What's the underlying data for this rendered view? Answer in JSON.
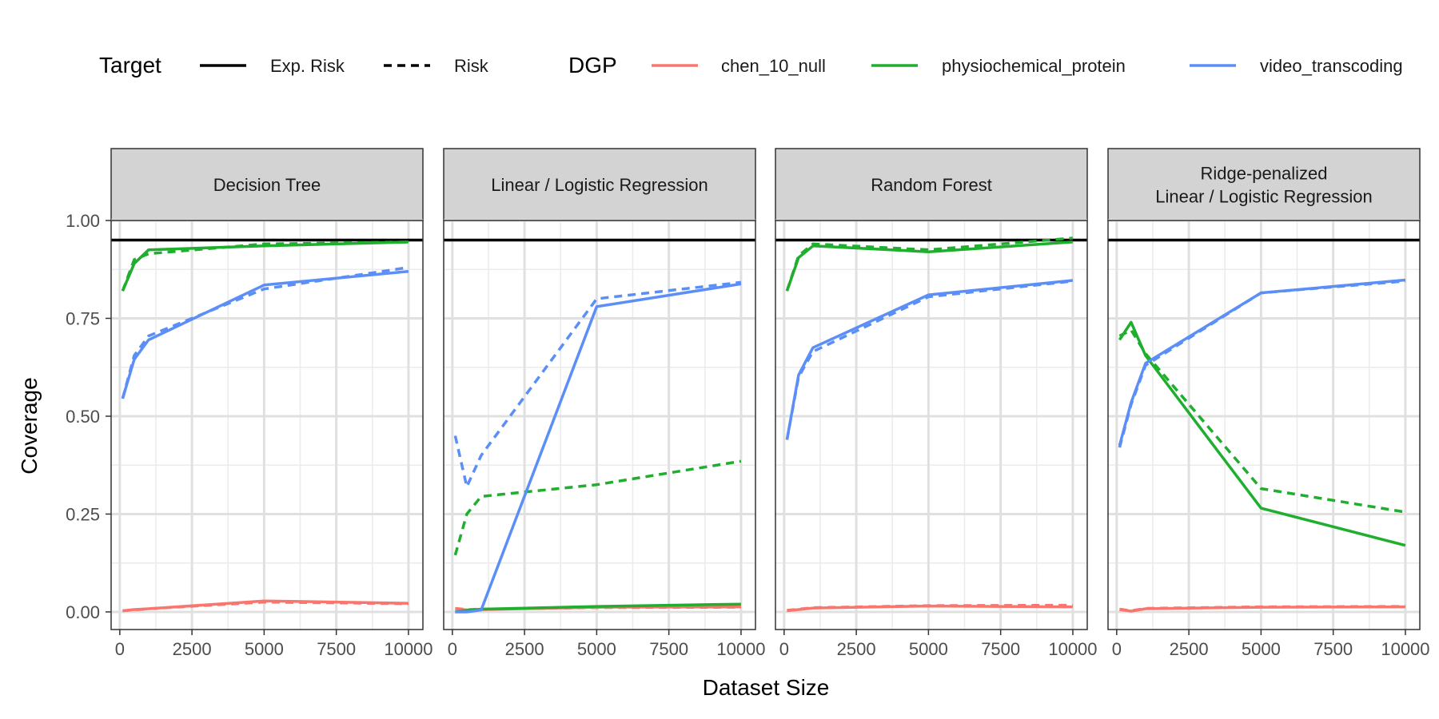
{
  "chart_data": {
    "type": "line",
    "xlabel": "Dataset Size",
    "ylabel": "Coverage",
    "xlim": [
      -300,
      10500
    ],
    "ylim": [
      -0.045,
      1.0
    ],
    "x_ticks": [
      0,
      2500,
      5000,
      7500,
      10000
    ],
    "y_ticks": [
      0.0,
      0.25,
      0.5,
      0.75,
      1.0
    ],
    "x_tick_labels": [
      "0",
      "2500",
      "5000",
      "7500",
      "10000"
    ],
    "y_tick_labels": [
      "0.00",
      "0.25",
      "0.50",
      "0.75",
      "1.00"
    ],
    "reference_line": 0.95,
    "grid": true,
    "legend": {
      "position": "top",
      "target_title": "Target",
      "targets": [
        {
          "label": "Exp. Risk",
          "dash": "solid"
        },
        {
          "label": "Risk",
          "dash": "dashed"
        }
      ],
      "dgp_title": "DGP",
      "dgps": [
        {
          "label": "chen_10_null",
          "color": "#F8766D"
        },
        {
          "label": "physiochemical_protein",
          "color": "#1FAE2E"
        },
        {
          "label": "video_transcoding",
          "color": "#5B8FF7"
        }
      ]
    },
    "colors": {
      "chen_10_null": "#F8766D",
      "physiochemical_protein": "#1FAE2E",
      "video_transcoding": "#5B8FF7"
    },
    "panels": [
      {
        "title": [
          "Decision Tree"
        ],
        "series": [
          {
            "dgp": "chen_10_null",
            "target": "Exp. Risk",
            "x": [
              100,
              500,
              1000,
              5000,
              10000
            ],
            "y": [
              0.003,
              0.006,
              0.008,
              0.028,
              0.022
            ]
          },
          {
            "dgp": "chen_10_null",
            "target": "Risk",
            "x": [
              100,
              500,
              1000,
              5000,
              10000
            ],
            "y": [
              0.003,
              0.005,
              0.008,
              0.025,
              0.021
            ]
          },
          {
            "dgp": "physiochemical_protein",
            "target": "Exp. Risk",
            "x": [
              100,
              500,
              1000,
              5000,
              10000
            ],
            "y": [
              0.82,
              0.89,
              0.925,
              0.935,
              0.945
            ]
          },
          {
            "dgp": "physiochemical_protein",
            "target": "Risk",
            "x": [
              100,
              500,
              1000,
              5000,
              10000
            ],
            "y": [
              0.82,
              0.9,
              0.915,
              0.94,
              0.945
            ]
          },
          {
            "dgp": "video_transcoding",
            "target": "Exp. Risk",
            "x": [
              100,
              500,
              1000,
              5000,
              10000
            ],
            "y": [
              0.545,
              0.645,
              0.695,
              0.835,
              0.87
            ]
          },
          {
            "dgp": "video_transcoding",
            "target": "Risk",
            "x": [
              100,
              500,
              1000,
              5000,
              10000
            ],
            "y": [
              0.545,
              0.655,
              0.705,
              0.825,
              0.88
            ]
          }
        ]
      },
      {
        "title": [
          "Linear / Logistic Regression"
        ],
        "series": [
          {
            "dgp": "chen_10_null",
            "target": "Exp. Risk",
            "x": [
              100,
              500,
              1000,
              5000,
              10000
            ],
            "y": [
              0.008,
              0.005,
              0.006,
              0.012,
              0.013
            ]
          },
          {
            "dgp": "chen_10_null",
            "target": "Risk",
            "x": [
              100,
              500,
              1000,
              5000,
              10000
            ],
            "y": [
              0.009,
              0.006,
              0.007,
              0.011,
              0.012
            ]
          },
          {
            "dgp": "physiochemical_protein",
            "target": "Exp. Risk",
            "x": [
              100,
              500,
              1000,
              5000,
              10000
            ],
            "y": [
              0.0,
              0.004,
              0.007,
              0.014,
              0.02
            ]
          },
          {
            "dgp": "physiochemical_protein",
            "target": "Risk",
            "x": [
              100,
              500,
              1000,
              5000,
              10000
            ],
            "y": [
              0.145,
              0.25,
              0.295,
              0.325,
              0.385
            ]
          },
          {
            "dgp": "video_transcoding",
            "target": "Exp. Risk",
            "x": [
              100,
              500,
              1000,
              5000,
              10000
            ],
            "y": [
              0.0,
              0.0,
              0.005,
              0.78,
              0.838
            ]
          },
          {
            "dgp": "video_transcoding",
            "target": "Risk",
            "x": [
              100,
              500,
              1000,
              5000,
              10000
            ],
            "y": [
              0.45,
              0.32,
              0.4,
              0.8,
              0.842
            ]
          }
        ]
      },
      {
        "title": [
          "Random Forest"
        ],
        "series": [
          {
            "dgp": "chen_10_null",
            "target": "Exp. Risk",
            "x": [
              100,
              500,
              1000,
              5000,
              10000
            ],
            "y": [
              0.003,
              0.006,
              0.01,
              0.015,
              0.013
            ]
          },
          {
            "dgp": "chen_10_null",
            "target": "Risk",
            "x": [
              100,
              500,
              1000,
              5000,
              10000
            ],
            "y": [
              0.004,
              0.007,
              0.011,
              0.016,
              0.017
            ]
          },
          {
            "dgp": "physiochemical_protein",
            "target": "Exp. Risk",
            "x": [
              100,
              500,
              1000,
              5000,
              10000
            ],
            "y": [
              0.82,
              0.905,
              0.935,
              0.92,
              0.945
            ]
          },
          {
            "dgp": "physiochemical_protein",
            "target": "Risk",
            "x": [
              100,
              500,
              1000,
              5000,
              10000
            ],
            "y": [
              0.82,
              0.91,
              0.94,
              0.925,
              0.955
            ]
          },
          {
            "dgp": "video_transcoding",
            "target": "Exp. Risk",
            "x": [
              100,
              500,
              1000,
              5000,
              10000
            ],
            "y": [
              0.44,
              0.605,
              0.675,
              0.81,
              0.847
            ]
          },
          {
            "dgp": "video_transcoding",
            "target": "Risk",
            "x": [
              100,
              500,
              1000,
              5000,
              10000
            ],
            "y": [
              0.44,
              0.6,
              0.665,
              0.805,
              0.845
            ]
          }
        ]
      },
      {
        "title": [
          "Ridge-penalized",
          "Linear / Logistic Regression"
        ],
        "series": [
          {
            "dgp": "chen_10_null",
            "target": "Exp. Risk",
            "x": [
              100,
              500,
              1000,
              5000,
              10000
            ],
            "y": [
              0.006,
              0.002,
              0.008,
              0.012,
              0.013
            ]
          },
          {
            "dgp": "chen_10_null",
            "target": "Risk",
            "x": [
              100,
              500,
              1000,
              5000,
              10000
            ],
            "y": [
              0.007,
              0.003,
              0.009,
              0.013,
              0.014
            ]
          },
          {
            "dgp": "physiochemical_protein",
            "target": "Exp. Risk",
            "x": [
              100,
              500,
              1000,
              5000,
              10000
            ],
            "y": [
              0.695,
              0.74,
              0.655,
              0.265,
              0.17
            ]
          },
          {
            "dgp": "physiochemical_protein",
            "target": "Risk",
            "x": [
              100,
              500,
              1000,
              5000,
              10000
            ],
            "y": [
              0.705,
              0.72,
              0.66,
              0.315,
              0.255
            ]
          },
          {
            "dgp": "video_transcoding",
            "target": "Exp. Risk",
            "x": [
              100,
              500,
              1000,
              5000,
              10000
            ],
            "y": [
              0.425,
              0.535,
              0.635,
              0.815,
              0.848
            ]
          },
          {
            "dgp": "video_transcoding",
            "target": "Risk",
            "x": [
              100,
              500,
              1000,
              5000,
              10000
            ],
            "y": [
              0.42,
              0.53,
              0.63,
              0.815,
              0.845
            ]
          }
        ]
      }
    ]
  }
}
